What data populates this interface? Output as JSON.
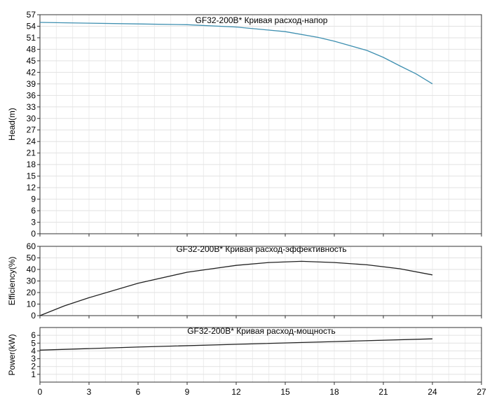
{
  "chart_data": [
    {
      "type": "line",
      "title": "GF32-200B* Кривая расход-напор",
      "xlabel": "",
      "ylabel": "Head(m)",
      "xlim": [
        0,
        27
      ],
      "ylim": [
        0,
        57
      ],
      "x_ticks": [
        0,
        3,
        6,
        9,
        12,
        15,
        18,
        21,
        24,
        27
      ],
      "y_ticks": [
        0,
        3,
        6,
        9,
        12,
        15,
        18,
        21,
        24,
        27,
        30,
        33,
        36,
        39,
        42,
        45,
        48,
        51,
        54,
        57
      ],
      "grid": true,
      "color": "#3e8fb0",
      "series": [
        {
          "x": [
            0,
            3,
            6,
            9,
            12,
            15,
            17,
            18,
            20,
            21,
            22,
            23,
            24
          ],
          "values": [
            55.0,
            54.8,
            54.6,
            54.4,
            53.8,
            52.6,
            51.1,
            50.1,
            47.7,
            45.9,
            43.7,
            41.6,
            39.0
          ]
        }
      ]
    },
    {
      "type": "line",
      "title": "GF32-200B* Кривая расход-эффективность",
      "xlabel": "",
      "ylabel": "Efficiency(%)",
      "xlim": [
        0,
        27
      ],
      "ylim": [
        0,
        60
      ],
      "x_ticks": [
        0,
        3,
        6,
        9,
        12,
        15,
        18,
        21,
        24,
        27
      ],
      "y_ticks": [
        0,
        10,
        20,
        30,
        40,
        50,
        60
      ],
      "grid": true,
      "color": "#222222",
      "series": [
        {
          "x": [
            0,
            1.5,
            3,
            6,
            9,
            12,
            14,
            16,
            18,
            20,
            22,
            24
          ],
          "values": [
            0,
            8.5,
            15.5,
            28,
            37.6,
            43.5,
            46,
            47,
            46,
            44,
            40.6,
            35.3
          ]
        }
      ]
    },
    {
      "type": "line",
      "title": "GF32-200B* Кривая расход-мощность",
      "xlabel": "",
      "ylabel": "Power(kW)",
      "xlim": [
        0,
        27
      ],
      "ylim": [
        0,
        7
      ],
      "x_ticks": [
        0,
        3,
        6,
        9,
        12,
        15,
        18,
        21,
        24,
        27
      ],
      "y_ticks": [
        1,
        2,
        3,
        4,
        5,
        6
      ],
      "grid": true,
      "color": "#222222",
      "series": [
        {
          "x": [
            0,
            6,
            12,
            18,
            24
          ],
          "values": [
            4.1,
            4.5,
            4.85,
            5.2,
            5.55
          ]
        }
      ]
    }
  ]
}
